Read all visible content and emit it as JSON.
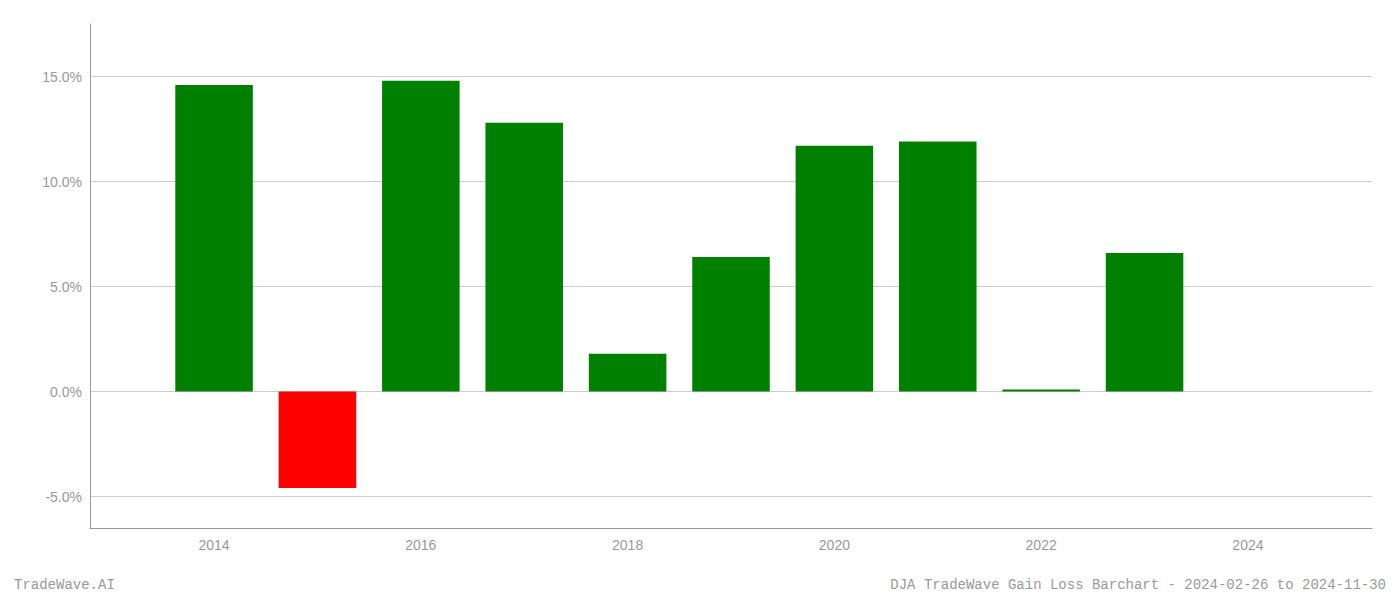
{
  "chart_data": {
    "type": "bar",
    "x": [
      2014,
      2015,
      2016,
      2017,
      2018,
      2019,
      2020,
      2021,
      2022,
      2023
    ],
    "values": [
      14.6,
      -4.6,
      14.8,
      12.8,
      1.8,
      6.4,
      11.7,
      11.9,
      0.1,
      6.6
    ],
    "colors": [
      "#008000",
      "#ff0000",
      "#008000",
      "#008000",
      "#008000",
      "#008000",
      "#008000",
      "#008000",
      "#008000",
      "#008000"
    ],
    "xlim": [
      2012.8,
      2025.2
    ],
    "xticks": [
      2014,
      2016,
      2018,
      2020,
      2022,
      2024
    ],
    "ylim": [
      -6.5,
      17.5
    ],
    "yticks": [
      {
        "value": -5.0,
        "label": "-5.0%"
      },
      {
        "value": 0.0,
        "label": "0.0%"
      },
      {
        "value": 5.0,
        "label": "5.0%"
      },
      {
        "value": 10.0,
        "label": "10.0%"
      },
      {
        "value": 15.0,
        "label": "15.0%"
      }
    ],
    "grid": true,
    "annotations": [
      "TradeWave.AI",
      "DJA TradeWave Gain Loss Barchart - 2024-02-26 to 2024-11-30"
    ]
  }
}
